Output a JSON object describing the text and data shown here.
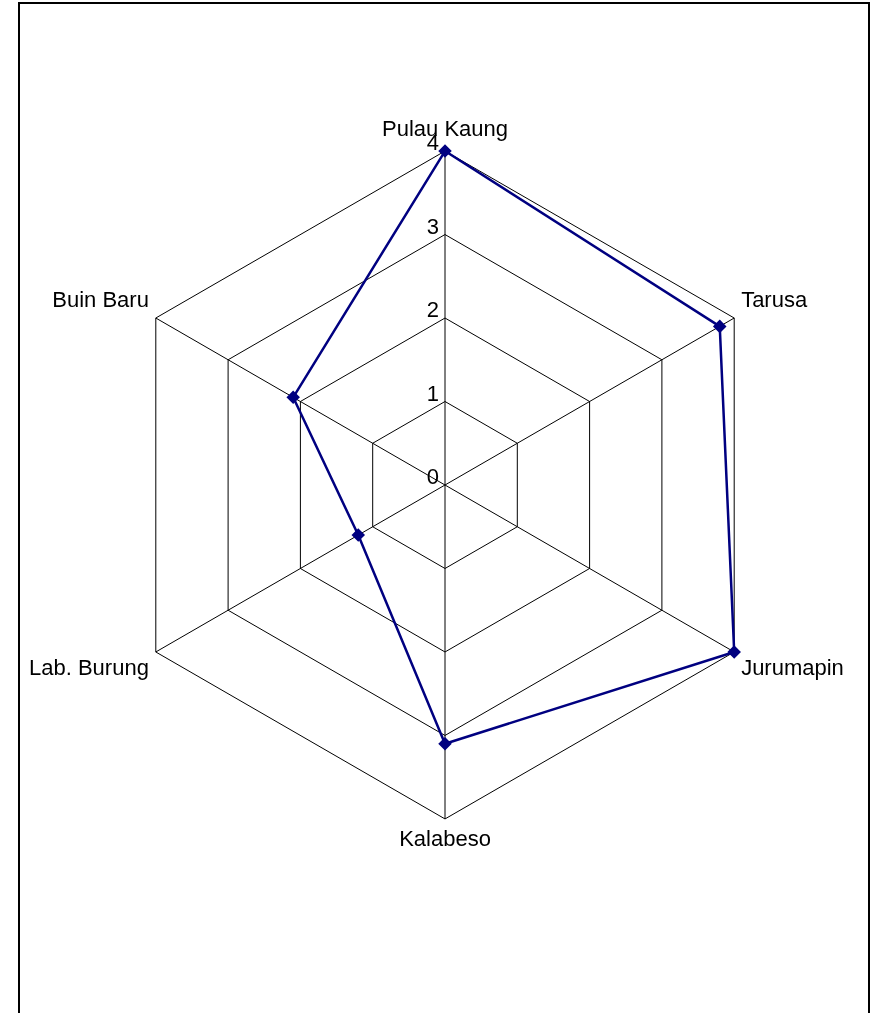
{
  "chart_data": {
    "type": "radar",
    "categories": [
      "Pulau Kaung",
      "Tarusa",
      "Jurumapin",
      "Kalabeso",
      "Lab. Burung",
      "Buin Baru"
    ],
    "series": [
      {
        "color": "#000080",
        "values": [
          4,
          3.8,
          4,
          3.1,
          1.2,
          2.1
        ]
      }
    ],
    "ylim": [
      0,
      4
    ],
    "yticks": [
      0,
      1,
      2,
      3,
      4
    ],
    "grid": true,
    "legend": false,
    "marker": "diamond",
    "line_style": "solid"
  }
}
